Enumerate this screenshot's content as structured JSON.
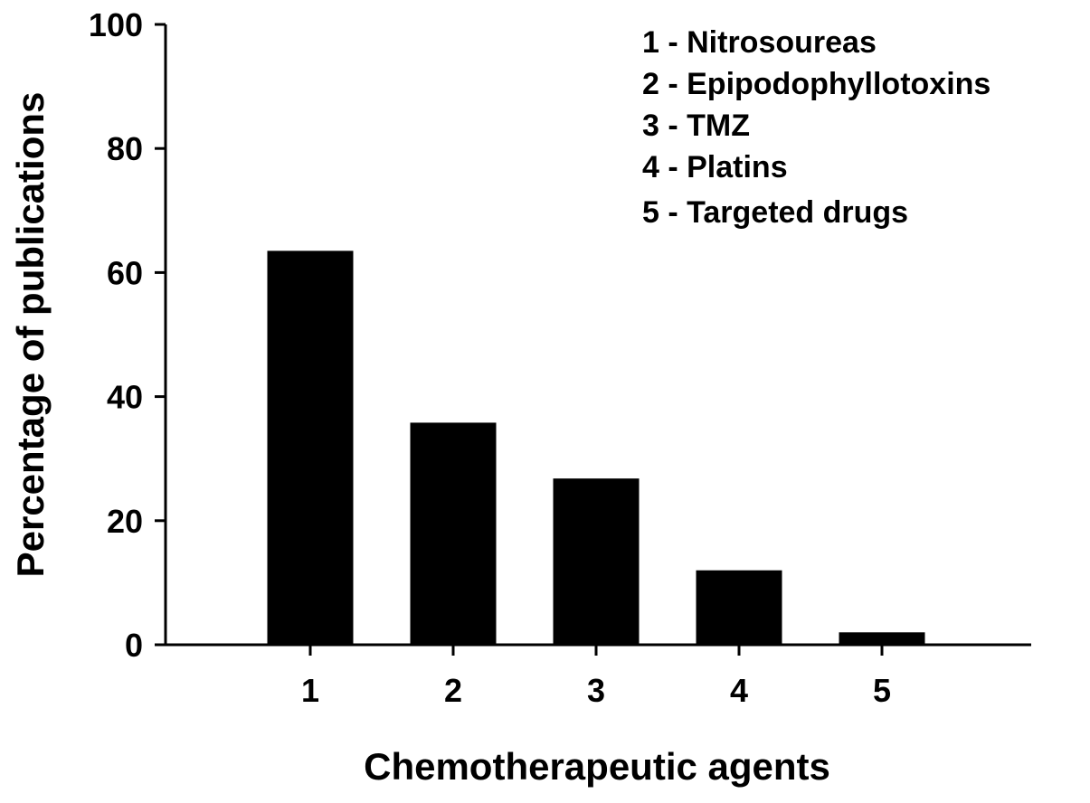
{
  "chart_data": {
    "type": "bar",
    "categories": [
      "1",
      "2",
      "3",
      "4",
      "5"
    ],
    "values": [
      63.5,
      35.8,
      26.8,
      12.0,
      2.0
    ],
    "title": "",
    "xlabel": "Chemotherapeutic agents",
    "ylabel": "Percentage of publications",
    "ylim": [
      0,
      100
    ],
    "yticks": [
      "0",
      "20",
      "40",
      "60",
      "80",
      "100"
    ],
    "legend": [
      "1 - Nitrosoureas",
      "2 - Epipodophyllotoxins",
      "3 - TMZ",
      "4 - Platins",
      "5 - Targeted drugs"
    ],
    "legend_position": "top-right",
    "grid": false,
    "bar_color": "#000000"
  }
}
